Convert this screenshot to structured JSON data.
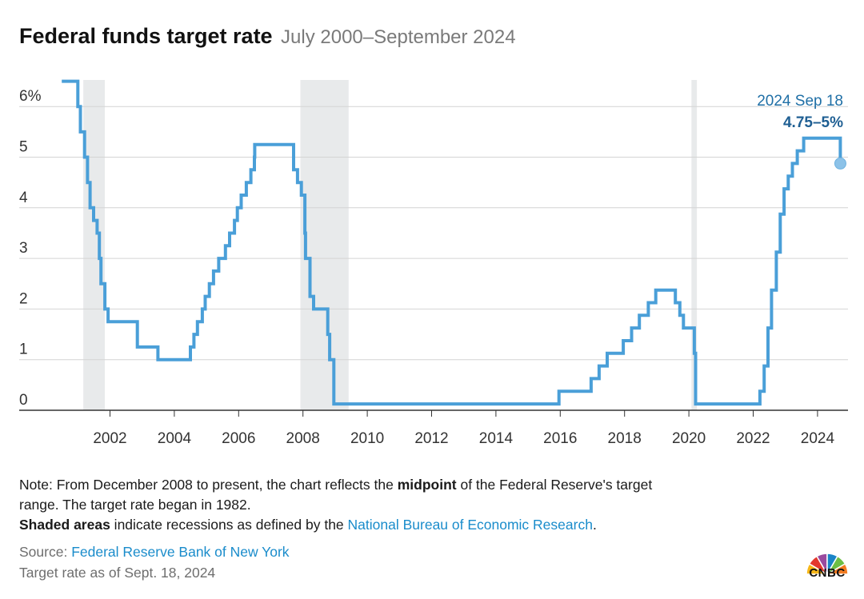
{
  "header": {
    "title": "Federal funds target rate",
    "subtitle": "July 2000–September 2024"
  },
  "chart_data": {
    "type": "line",
    "title": "Federal funds target rate",
    "subtitle": "July 2000–September 2024",
    "xlabel": "",
    "ylabel": "",
    "xlim": [
      2000.5,
      2025.1
    ],
    "ylim": [
      0,
      6.5
    ],
    "y_ticks": [
      0,
      1,
      2,
      3,
      4,
      5,
      6
    ],
    "y_tick_labels": [
      "0",
      "1",
      "2",
      "3",
      "4",
      "5",
      "6%"
    ],
    "x_ticks": [
      2002,
      2004,
      2006,
      2008,
      2010,
      2012,
      2014,
      2016,
      2018,
      2020,
      2022,
      2024
    ],
    "x_tick_labels": [
      "2002",
      "2004",
      "2006",
      "2008",
      "2010",
      "2012",
      "2014",
      "2016",
      "2018",
      "2020",
      "2022",
      "2024"
    ],
    "grid": true,
    "line_color": "#4a9fd8",
    "recession_color": "#e8eaeb",
    "recessions": [
      {
        "start": "2001 Mar",
        "end": "2001 Nov",
        "x": [
          2001.17,
          2001.84
        ]
      },
      {
        "start": "2007 Dec",
        "end": "2009 Jun",
        "x": [
          2007.92,
          2009.42
        ]
      },
      {
        "start": "2020 Feb",
        "end": "2020 Apr",
        "x": [
          2020.08,
          2020.25
        ]
      }
    ],
    "series": [
      {
        "values": [
          [
            2000.5,
            6.5
          ],
          [
            2001.0,
            6.5
          ],
          [
            2001.0,
            6.0
          ],
          [
            2001.08,
            6.0
          ],
          [
            2001.08,
            5.5
          ],
          [
            2001.21,
            5.5
          ],
          [
            2001.21,
            5.0
          ],
          [
            2001.3,
            5.0
          ],
          [
            2001.3,
            4.5
          ],
          [
            2001.38,
            4.5
          ],
          [
            2001.38,
            4.0
          ],
          [
            2001.49,
            4.0
          ],
          [
            2001.49,
            3.75
          ],
          [
            2001.6,
            3.75
          ],
          [
            2001.6,
            3.5
          ],
          [
            2001.67,
            3.5
          ],
          [
            2001.67,
            3.0
          ],
          [
            2001.72,
            3.0
          ],
          [
            2001.72,
            2.5
          ],
          [
            2001.84,
            2.5
          ],
          [
            2001.84,
            2.0
          ],
          [
            2001.94,
            2.0
          ],
          [
            2001.94,
            1.75
          ],
          [
            2002.85,
            1.75
          ],
          [
            2002.85,
            1.25
          ],
          [
            2003.49,
            1.25
          ],
          [
            2003.49,
            1.0
          ],
          [
            2004.5,
            1.0
          ],
          [
            2004.5,
            1.25
          ],
          [
            2004.61,
            1.25
          ],
          [
            2004.61,
            1.5
          ],
          [
            2004.72,
            1.5
          ],
          [
            2004.72,
            1.75
          ],
          [
            2004.87,
            1.75
          ],
          [
            2004.87,
            2.0
          ],
          [
            2004.96,
            2.0
          ],
          [
            2004.96,
            2.25
          ],
          [
            2005.09,
            2.25
          ],
          [
            2005.09,
            2.5
          ],
          [
            2005.22,
            2.5
          ],
          [
            2005.22,
            2.75
          ],
          [
            2005.38,
            2.75
          ],
          [
            2005.38,
            3.0
          ],
          [
            2005.59,
            3.0
          ],
          [
            2005.59,
            3.25
          ],
          [
            2005.72,
            3.25
          ],
          [
            2005.72,
            3.5
          ],
          [
            2005.87,
            3.5
          ],
          [
            2005.87,
            3.75
          ],
          [
            2005.96,
            3.75
          ],
          [
            2005.96,
            4.0
          ],
          [
            2006.08,
            4.0
          ],
          [
            2006.08,
            4.25
          ],
          [
            2006.24,
            4.25
          ],
          [
            2006.24,
            4.5
          ],
          [
            2006.38,
            4.5
          ],
          [
            2006.38,
            4.75
          ],
          [
            2006.49,
            4.75
          ],
          [
            2006.49,
            5.0
          ],
          [
            2006.5,
            5.0
          ],
          [
            2006.5,
            5.25
          ],
          [
            2007.71,
            5.25
          ],
          [
            2007.71,
            4.75
          ],
          [
            2007.83,
            4.75
          ],
          [
            2007.83,
            4.5
          ],
          [
            2007.95,
            4.5
          ],
          [
            2007.95,
            4.25
          ],
          [
            2008.06,
            4.25
          ],
          [
            2008.06,
            3.5
          ],
          [
            2008.08,
            3.5
          ],
          [
            2008.08,
            3.0
          ],
          [
            2008.22,
            3.0
          ],
          [
            2008.22,
            2.25
          ],
          [
            2008.33,
            2.25
          ],
          [
            2008.33,
            2.0
          ],
          [
            2008.77,
            2.0
          ],
          [
            2008.77,
            1.5
          ],
          [
            2008.83,
            1.5
          ],
          [
            2008.83,
            1.0
          ],
          [
            2008.96,
            1.0
          ],
          [
            2008.96,
            0.125
          ],
          [
            2015.96,
            0.125
          ],
          [
            2015.96,
            0.375
          ],
          [
            2016.96,
            0.375
          ],
          [
            2016.96,
            0.625
          ],
          [
            2017.21,
            0.625
          ],
          [
            2017.21,
            0.875
          ],
          [
            2017.46,
            0.875
          ],
          [
            2017.46,
            1.125
          ],
          [
            2017.96,
            1.125
          ],
          [
            2017.96,
            1.375
          ],
          [
            2018.22,
            1.375
          ],
          [
            2018.22,
            1.625
          ],
          [
            2018.46,
            1.625
          ],
          [
            2018.46,
            1.875
          ],
          [
            2018.74,
            1.875
          ],
          [
            2018.74,
            2.125
          ],
          [
            2018.97,
            2.125
          ],
          [
            2018.97,
            2.375
          ],
          [
            2019.58,
            2.375
          ],
          [
            2019.58,
            2.125
          ],
          [
            2019.72,
            2.125
          ],
          [
            2019.72,
            1.875
          ],
          [
            2019.83,
            1.875
          ],
          [
            2019.83,
            1.625
          ],
          [
            2020.17,
            1.625
          ],
          [
            2020.17,
            1.125
          ],
          [
            2020.21,
            1.125
          ],
          [
            2020.21,
            0.125
          ],
          [
            2022.21,
            0.125
          ],
          [
            2022.21,
            0.375
          ],
          [
            2022.34,
            0.375
          ],
          [
            2022.34,
            0.875
          ],
          [
            2022.46,
            0.875
          ],
          [
            2022.46,
            1.625
          ],
          [
            2022.57,
            1.625
          ],
          [
            2022.57,
            2.375
          ],
          [
            2022.72,
            2.375
          ],
          [
            2022.72,
            3.125
          ],
          [
            2022.84,
            3.125
          ],
          [
            2022.84,
            3.875
          ],
          [
            2022.96,
            3.875
          ],
          [
            2022.96,
            4.375
          ],
          [
            2023.09,
            4.375
          ],
          [
            2023.09,
            4.625
          ],
          [
            2023.22,
            4.625
          ],
          [
            2023.22,
            4.875
          ],
          [
            2023.37,
            4.875
          ],
          [
            2023.37,
            5.125
          ],
          [
            2023.57,
            5.125
          ],
          [
            2023.57,
            5.375
          ],
          [
            2024.71,
            5.375
          ],
          [
            2024.71,
            4.875
          ]
        ]
      }
    ],
    "annotation": {
      "date": "2024 Sep 18",
      "range": "4.75–5%",
      "x": 2024.71,
      "y": 4.875
    }
  },
  "notes": {
    "line1_pre": "Note: From December 2008 to present, the chart reflects the ",
    "line1_bold": "midpoint",
    "line1_post": " of the Federal Reserve's target",
    "line2": "range. The target rate began in 1982.",
    "line3_bold": "Shaded areas",
    "line3_mid": " indicate recessions as defined by the ",
    "line3_link": "National Bureau of Economic Research",
    "line3_end": "."
  },
  "source": {
    "label": "Source: ",
    "link": "Federal Reserve Bank of New York",
    "asof": "Target rate as of Sept. 18, 2024"
  },
  "logo": {
    "text": "CNBC",
    "colors": [
      "#f7b718",
      "#e3382e",
      "#9a4a9e",
      "#1a84c7",
      "#6dbe45",
      "#f37c22"
    ]
  }
}
